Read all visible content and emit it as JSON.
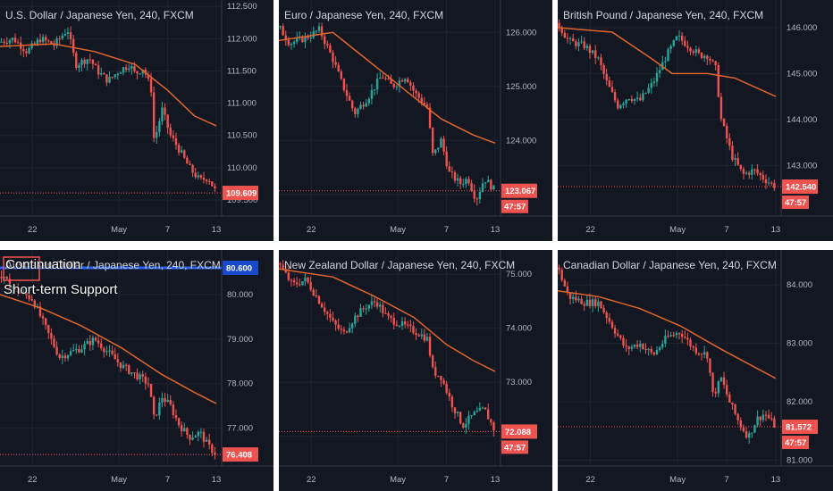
{
  "chart_data": [
    {
      "type": "candlestick",
      "title": "U.S. Dollar / Japanese Yen, 240, FXCM",
      "ylim": [
        109.25,
        112.6
      ],
      "yticks": [
        "112.500",
        "112.000",
        "111.500",
        "111.000",
        "110.500",
        "110.000",
        "109.500"
      ],
      "x_ticks": [
        {
          "label": "22",
          "pos": 0.12
        },
        {
          "label": "May",
          "pos": 0.44
        },
        {
          "label": "7",
          "pos": 0.62
        },
        {
          "label": "13",
          "pos": 0.8
        }
      ],
      "last_price": "109.609",
      "last_value": 109.609,
      "ma": [
        [
          0,
          111.88
        ],
        [
          0.2,
          111.92
        ],
        [
          0.35,
          111.8
        ],
        [
          0.5,
          111.6
        ],
        [
          0.62,
          111.2
        ],
        [
          0.72,
          110.8
        ],
        [
          0.8,
          110.65
        ]
      ],
      "path": [
        [
          0,
          111.95
        ],
        [
          0.05,
          112.0
        ],
        [
          0.1,
          111.8
        ],
        [
          0.15,
          112.0
        ],
        [
          0.2,
          111.9
        ],
        [
          0.25,
          112.15
        ],
        [
          0.28,
          111.6
        ],
        [
          0.33,
          111.7
        ],
        [
          0.36,
          111.5
        ],
        [
          0.4,
          111.35
        ],
        [
          0.44,
          111.5
        ],
        [
          0.48,
          111.6
        ],
        [
          0.5,
          111.45
        ],
        [
          0.53,
          111.55
        ],
        [
          0.56,
          111.2
        ],
        [
          0.57,
          110.4
        ],
        [
          0.6,
          110.9
        ],
        [
          0.63,
          110.5
        ],
        [
          0.66,
          110.3
        ],
        [
          0.7,
          110.0
        ],
        [
          0.74,
          109.8
        ],
        [
          0.77,
          109.85
        ],
        [
          0.8,
          109.61
        ]
      ]
    },
    {
      "type": "candlestick",
      "title": "Euro / Japanese Yen, 240, FXCM",
      "ylim": [
        122.6,
        126.6
      ],
      "yticks": [
        "126.000",
        "125.000",
        "124.000",
        "123.000"
      ],
      "x_ticks": [
        {
          "label": "22",
          "pos": 0.12
        },
        {
          "label": "May",
          "pos": 0.44
        },
        {
          "label": "7",
          "pos": 0.62
        },
        {
          "label": "13",
          "pos": 0.8
        }
      ],
      "last_price": "123.067",
      "timer": "47:57",
      "last_value": 123.067,
      "ma": [
        [
          0,
          125.85
        ],
        [
          0.2,
          126.0
        ],
        [
          0.3,
          125.6
        ],
        [
          0.45,
          125.0
        ],
        [
          0.6,
          124.4
        ],
        [
          0.72,
          124.1
        ],
        [
          0.8,
          123.95
        ]
      ],
      "path": [
        [
          0,
          126.1
        ],
        [
          0.04,
          125.8
        ],
        [
          0.1,
          125.9
        ],
        [
          0.15,
          126.05
        ],
        [
          0.2,
          125.5
        ],
        [
          0.23,
          125.1
        ],
        [
          0.28,
          124.5
        ],
        [
          0.33,
          124.8
        ],
        [
          0.38,
          125.2
        ],
        [
          0.42,
          125.0
        ],
        [
          0.47,
          125.2
        ],
        [
          0.5,
          124.9
        ],
        [
          0.55,
          124.6
        ],
        [
          0.57,
          123.7
        ],
        [
          0.6,
          124.0
        ],
        [
          0.63,
          123.4
        ],
        [
          0.67,
          123.2
        ],
        [
          0.7,
          123.3
        ],
        [
          0.73,
          122.9
        ],
        [
          0.76,
          123.3
        ],
        [
          0.8,
          123.07
        ]
      ]
    },
    {
      "type": "candlestick",
      "title": "British Pound / Japanese Yen, 240, FXCM",
      "ylim": [
        141.9,
        146.6
      ],
      "yticks": [
        "146.000",
        "145.000",
        "144.000",
        "143.000"
      ],
      "x_ticks": [
        {
          "label": "22",
          "pos": 0.12
        },
        {
          "label": "May",
          "pos": 0.44
        },
        {
          "label": "7",
          "pos": 0.62
        },
        {
          "label": "13",
          "pos": 0.8
        }
      ],
      "last_price": "142.540",
      "timer": "47:57",
      "last_value": 142.54,
      "ma": [
        [
          0,
          146.0
        ],
        [
          0.2,
          145.9
        ],
        [
          0.35,
          145.3
        ],
        [
          0.42,
          145.0
        ],
        [
          0.55,
          145.0
        ],
        [
          0.65,
          144.9
        ],
        [
          0.8,
          144.5
        ]
      ],
      "path": [
        [
          0,
          146.1
        ],
        [
          0.04,
          145.7
        ],
        [
          0.1,
          145.6
        ],
        [
          0.15,
          145.3
        ],
        [
          0.18,
          144.8
        ],
        [
          0.22,
          144.3
        ],
        [
          0.26,
          144.5
        ],
        [
          0.3,
          144.4
        ],
        [
          0.35,
          144.8
        ],
        [
          0.4,
          145.4
        ],
        [
          0.44,
          145.8
        ],
        [
          0.48,
          145.6
        ],
        [
          0.52,
          145.4
        ],
        [
          0.55,
          145.4
        ],
        [
          0.58,
          145.1
        ],
        [
          0.6,
          144.0
        ],
        [
          0.64,
          143.2
        ],
        [
          0.68,
          142.8
        ],
        [
          0.72,
          142.9
        ],
        [
          0.76,
          142.7
        ],
        [
          0.8,
          142.54
        ]
      ]
    },
    {
      "type": "candlestick",
      "title": "Australian Dollar / Japanese Yen, 240, FXCM",
      "ylim": [
        76.15,
        81.0
      ],
      "yticks": [
        "80.600",
        "80.000",
        "79.000",
        "78.000",
        "77.000",
        "76.408"
      ],
      "x_ticks": [
        {
          "label": "22",
          "pos": 0.12
        },
        {
          "label": "May",
          "pos": 0.44
        },
        {
          "label": "7",
          "pos": 0.62
        },
        {
          "label": "13",
          "pos": 0.8
        }
      ],
      "last_price": "76.408",
      "level_price": "80.600",
      "annotations": [
        "Continuation",
        "Short-term Support"
      ],
      "last_value": 76.408,
      "level_value": 80.6,
      "ma": [
        [
          0,
          80.0
        ],
        [
          0.15,
          79.7
        ],
        [
          0.3,
          79.3
        ],
        [
          0.45,
          78.8
        ],
        [
          0.6,
          78.2
        ],
        [
          0.72,
          77.8
        ],
        [
          0.8,
          77.55
        ]
      ],
      "path": [
        [
          0,
          80.4
        ],
        [
          0.06,
          80.1
        ],
        [
          0.12,
          79.9
        ],
        [
          0.18,
          79.1
        ],
        [
          0.22,
          78.6
        ],
        [
          0.26,
          78.7
        ],
        [
          0.3,
          78.8
        ],
        [
          0.35,
          79.0
        ],
        [
          0.4,
          78.7
        ],
        [
          0.45,
          78.4
        ],
        [
          0.5,
          78.2
        ],
        [
          0.55,
          78.0
        ],
        [
          0.57,
          77.2
        ],
        [
          0.6,
          77.7
        ],
        [
          0.63,
          77.5
        ],
        [
          0.66,
          77.1
        ],
        [
          0.7,
          76.8
        ],
        [
          0.74,
          76.9
        ],
        [
          0.77,
          76.6
        ],
        [
          0.8,
          76.41
        ]
      ]
    },
    {
      "type": "candlestick",
      "title": "New Zealand Dollar / Japanese Yen, 240, FXCM",
      "ylim": [
        71.45,
        75.45
      ],
      "yticks": [
        "75.000",
        "74.000",
        "73.000",
        "72.000"
      ],
      "x_ticks": [
        {
          "label": "22",
          "pos": 0.12
        },
        {
          "label": "May",
          "pos": 0.44
        },
        {
          "label": "7",
          "pos": 0.62
        },
        {
          "label": "13",
          "pos": 0.8
        }
      ],
      "last_price": "72.088",
      "timer": "47:57",
      "last_value": 72.088,
      "ma": [
        [
          0,
          75.1
        ],
        [
          0.2,
          74.95
        ],
        [
          0.35,
          74.6
        ],
        [
          0.5,
          74.2
        ],
        [
          0.62,
          73.7
        ],
        [
          0.72,
          73.4
        ],
        [
          0.8,
          73.2
        ]
      ],
      "path": [
        [
          0,
          75.2
        ],
        [
          0.05,
          74.8
        ],
        [
          0.1,
          74.9
        ],
        [
          0.15,
          74.5
        ],
        [
          0.2,
          74.1
        ],
        [
          0.24,
          73.9
        ],
        [
          0.28,
          74.2
        ],
        [
          0.32,
          74.4
        ],
        [
          0.36,
          74.5
        ],
        [
          0.4,
          74.2
        ],
        [
          0.44,
          74.1
        ],
        [
          0.48,
          74.0
        ],
        [
          0.52,
          73.9
        ],
        [
          0.55,
          73.8
        ],
        [
          0.57,
          73.2
        ],
        [
          0.6,
          73.1
        ],
        [
          0.64,
          72.6
        ],
        [
          0.68,
          72.2
        ],
        [
          0.72,
          72.4
        ],
        [
          0.76,
          72.5
        ],
        [
          0.8,
          72.09
        ]
      ]
    },
    {
      "type": "candlestick",
      "title": "Canadian Dollar / Japanese Yen, 240, FXCM",
      "ylim": [
        80.9,
        84.6
      ],
      "yticks": [
        "84.000",
        "83.000",
        "82.000",
        "81.000"
      ],
      "x_ticks": [
        {
          "label": "22",
          "pos": 0.12
        },
        {
          "label": "May",
          "pos": 0.44
        },
        {
          "label": "7",
          "pos": 0.62
        },
        {
          "label": "13",
          "pos": 0.8
        }
      ],
      "last_price": "81.572",
      "timer": "47:57",
      "last_value": 81.572,
      "ma": [
        [
          0,
          83.9
        ],
        [
          0.15,
          83.8
        ],
        [
          0.3,
          83.6
        ],
        [
          0.45,
          83.3
        ],
        [
          0.6,
          82.9
        ],
        [
          0.72,
          82.6
        ],
        [
          0.8,
          82.4
        ]
      ],
      "path": [
        [
          0,
          84.3
        ],
        [
          0.04,
          83.8
        ],
        [
          0.1,
          83.7
        ],
        [
          0.15,
          83.7
        ],
        [
          0.2,
          83.3
        ],
        [
          0.25,
          82.9
        ],
        [
          0.3,
          83.0
        ],
        [
          0.35,
          82.8
        ],
        [
          0.4,
          83.1
        ],
        [
          0.45,
          83.2
        ],
        [
          0.5,
          82.9
        ],
        [
          0.55,
          82.8
        ],
        [
          0.57,
          82.1
        ],
        [
          0.6,
          82.4
        ],
        [
          0.63,
          82.0
        ],
        [
          0.67,
          81.6
        ],
        [
          0.7,
          81.4
        ],
        [
          0.73,
          81.7
        ],
        [
          0.76,
          81.8
        ],
        [
          0.8,
          81.57
        ]
      ]
    }
  ]
}
